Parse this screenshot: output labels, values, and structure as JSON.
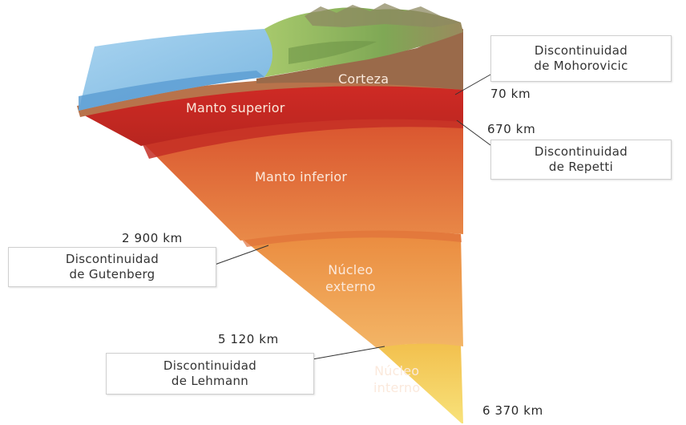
{
  "layers": {
    "corteza": "Corteza",
    "manto_superior": "Manto superior",
    "manto_inferior": "Manto inferior",
    "nucleo_externo": [
      "Núcleo",
      "externo"
    ],
    "nucleo_interno": [
      "Núcleo",
      "interno"
    ]
  },
  "depths": {
    "moho": "70 km",
    "repetti": "670 km",
    "gutenberg": "2 900 km",
    "lehmann": "5 120 km",
    "centro": "6 370 km"
  },
  "discontinuities": {
    "mohorovicic": [
      "Discontinuidad",
      "de Mohorovicic"
    ],
    "repetti": [
      "Discontinuidad",
      "de Repetti"
    ],
    "gutenberg": [
      "Discontinuidad",
      "de Gutenberg"
    ],
    "lehmann": [
      "Discontinuidad",
      "de Lehmann"
    ]
  },
  "colors": {
    "ocean": "#8ec3e6",
    "crust": "#9a6a4a",
    "land": "#8fb860",
    "upper_mantle": "#d8352b",
    "lower_mantle": "#e26a3a",
    "outer_core": "#eea052",
    "inner_core": "#f4d45a"
  }
}
